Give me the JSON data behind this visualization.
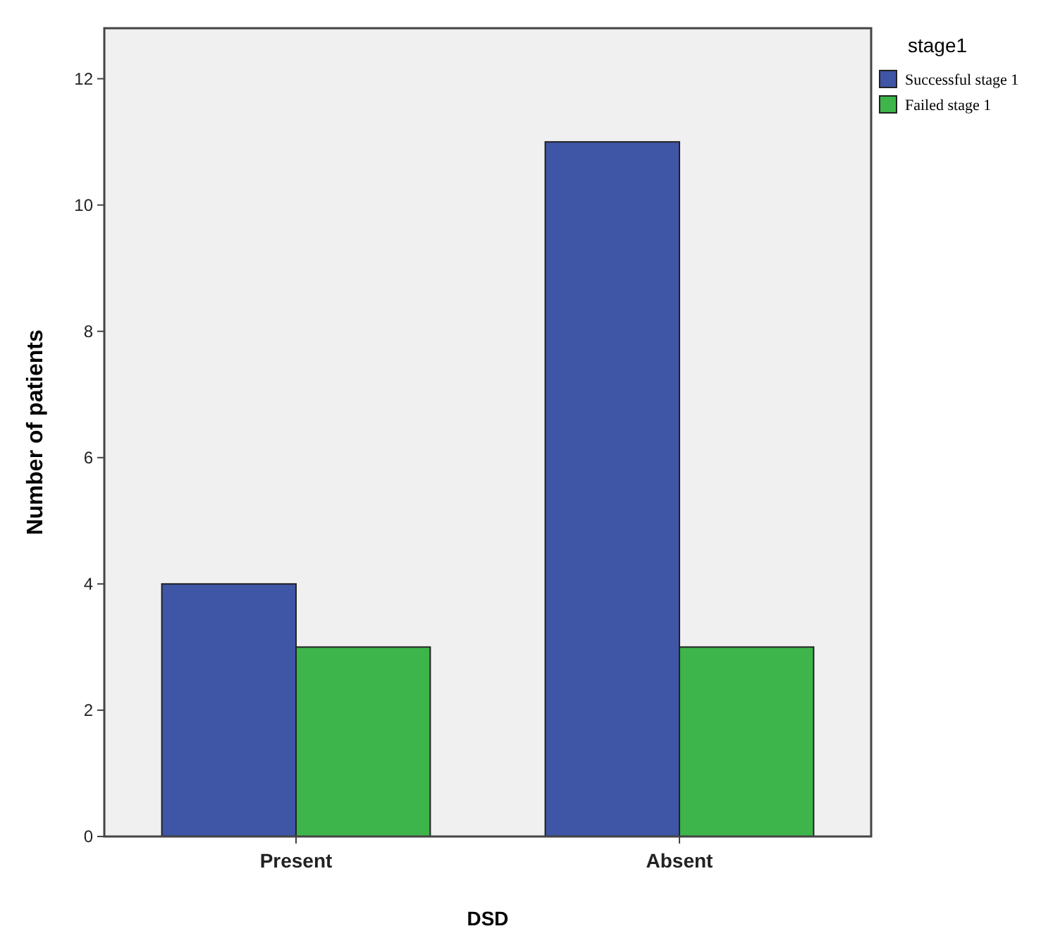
{
  "chart_data": {
    "type": "bar",
    "xlabel": "DSD",
    "ylabel": "Number of patients",
    "legend_title": "stage1",
    "categories": [
      "Present",
      "Absent"
    ],
    "series": [
      {
        "name": "Successful stage 1",
        "color": "#3f55a5",
        "values": [
          4,
          11
        ]
      },
      {
        "name": "Failed stage 1",
        "color": "#3db54a",
        "values": [
          3,
          3
        ]
      }
    ],
    "ylim": [
      0,
      12.8
    ],
    "yticks": [
      0,
      2,
      4,
      6,
      8,
      10,
      12
    ],
    "grid": false,
    "legend": "right"
  }
}
